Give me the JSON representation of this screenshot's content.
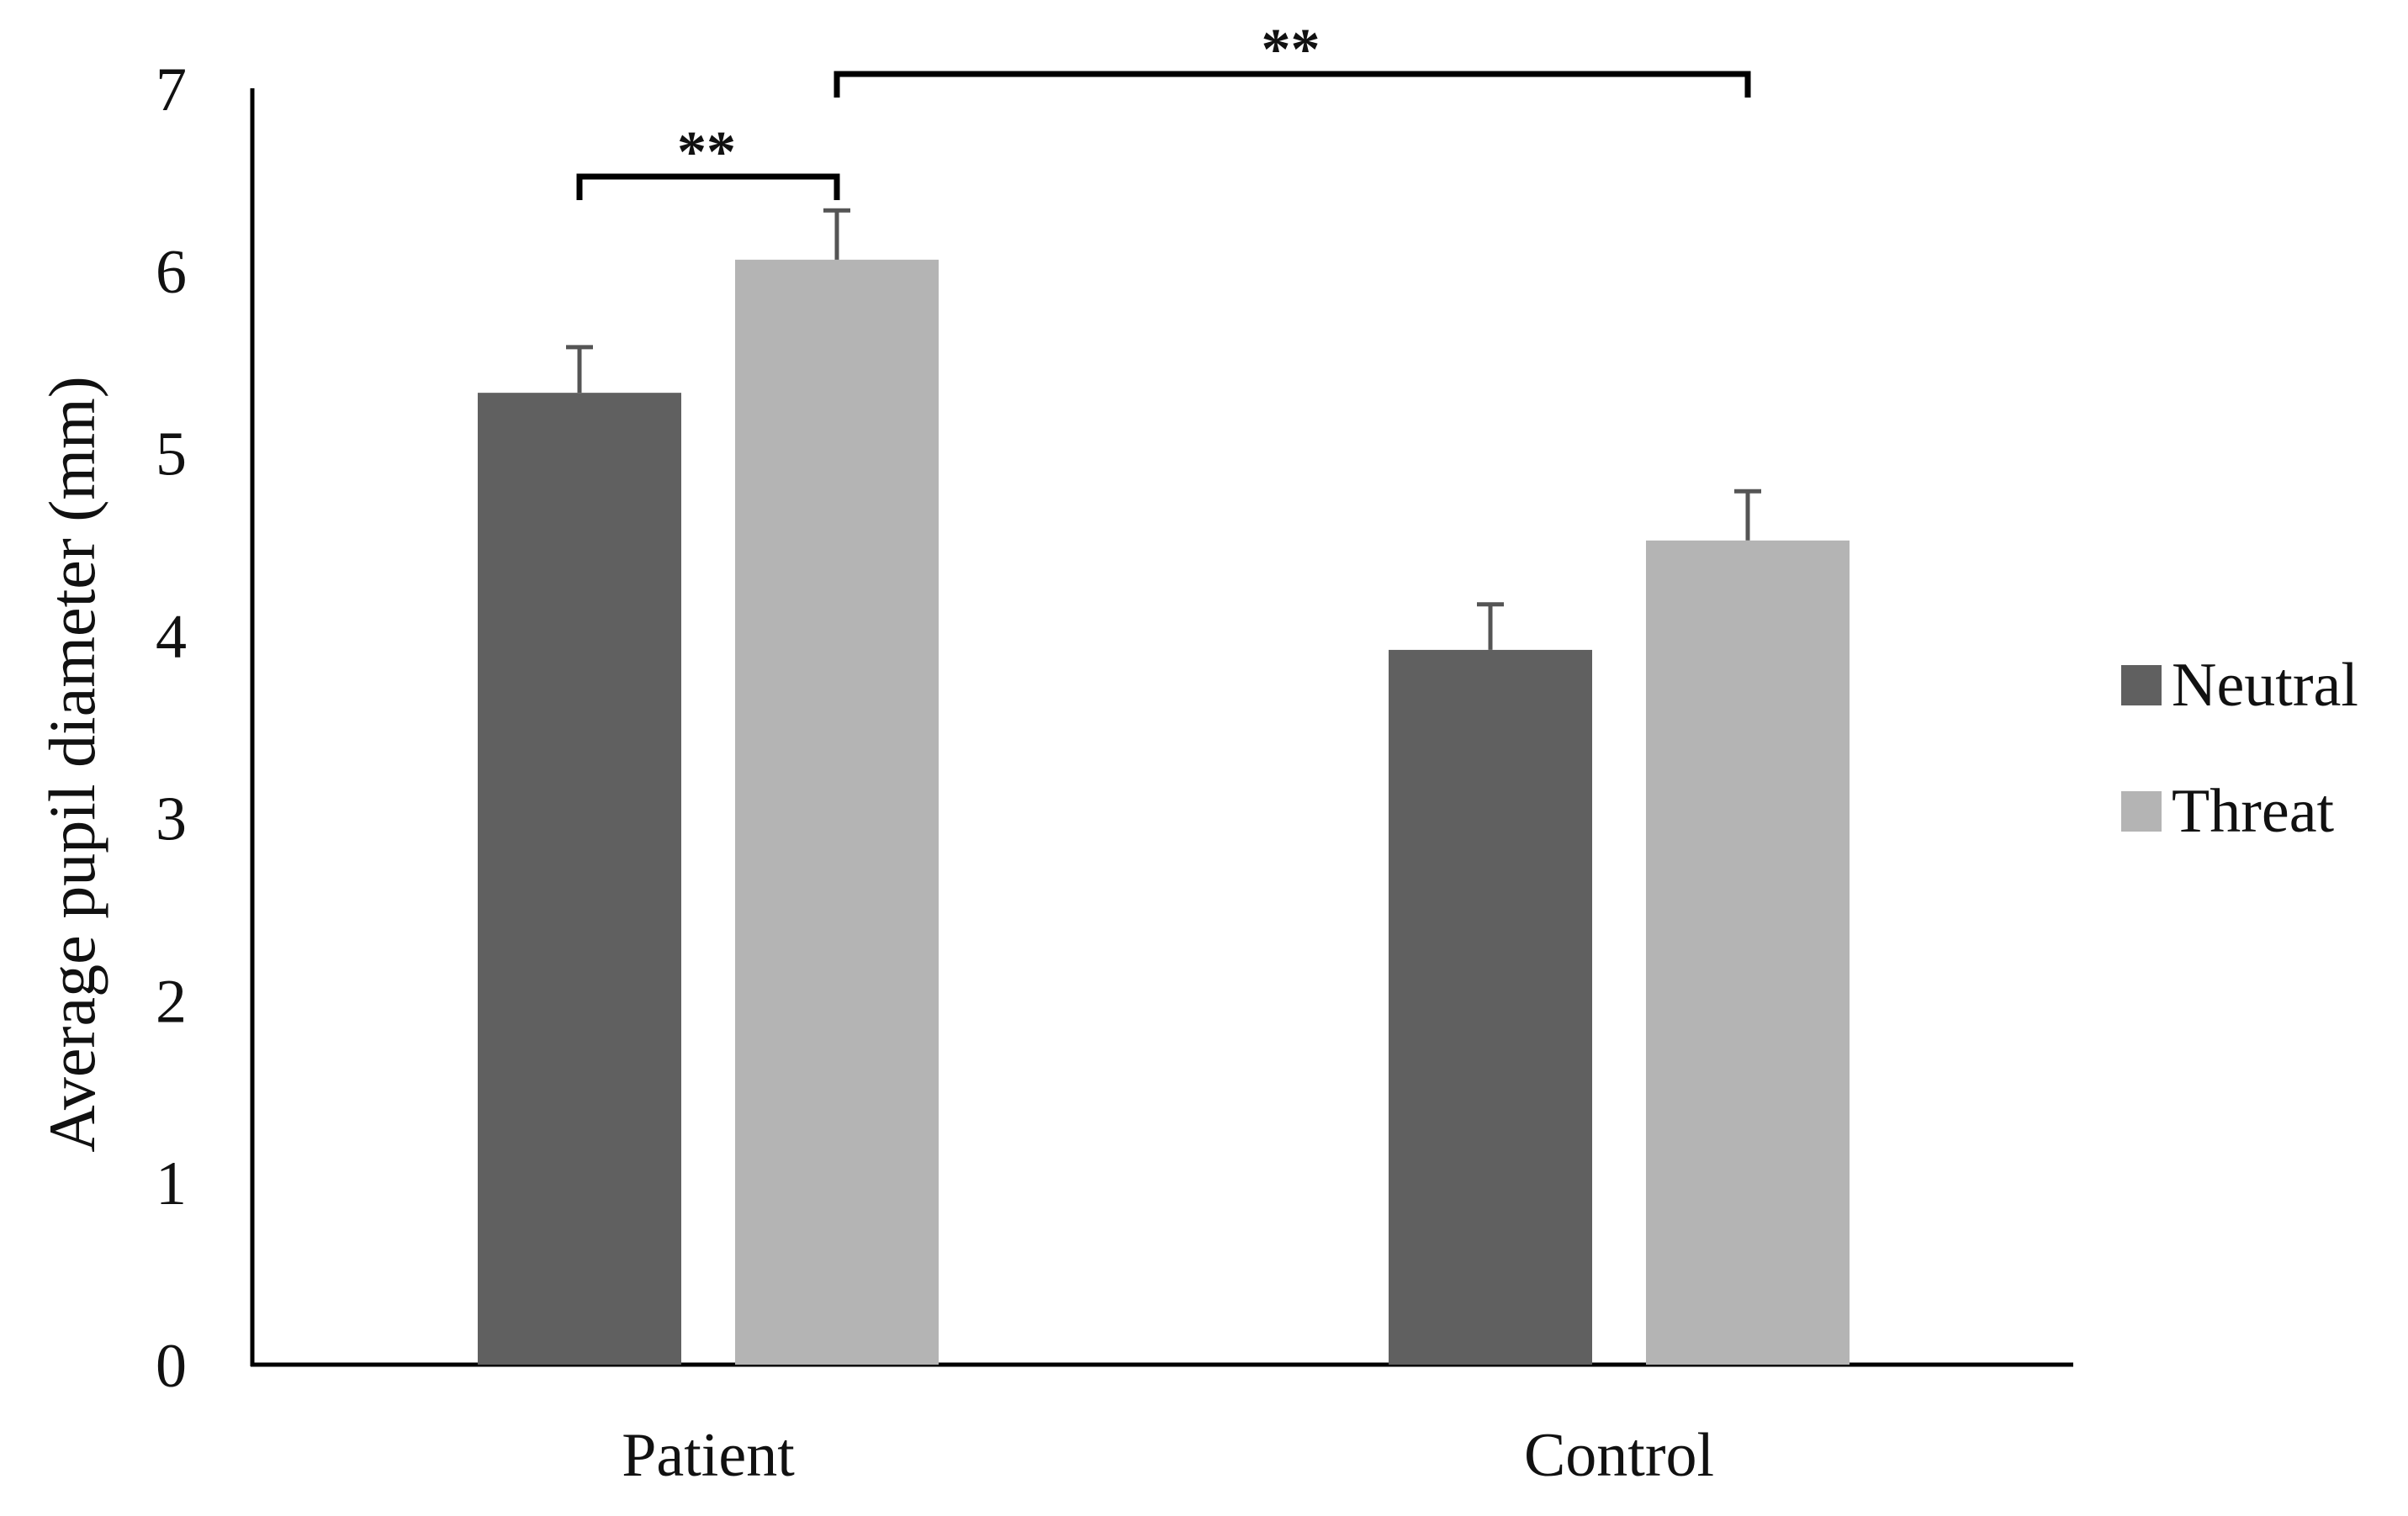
{
  "chart_data": {
    "type": "bar",
    "title": "",
    "xlabel": "",
    "ylabel": "Average pupil diameter (mm)",
    "ylim": [
      0,
      7
    ],
    "yticks": [
      0,
      1,
      2,
      3,
      4,
      5,
      6,
      7
    ],
    "categories": [
      "Patient",
      "Control"
    ],
    "series": [
      {
        "name": "Neutral",
        "color": "#606060",
        "values": [
          5.33,
          3.92
        ],
        "error": [
          0.25,
          0.25
        ]
      },
      {
        "name": "Threat",
        "color": "#b4b4b4",
        "values": [
          6.06,
          4.52
        ],
        "error": [
          0.27,
          0.27
        ]
      }
    ],
    "legend_position": "right",
    "grid": false,
    "significance": [
      {
        "label": "**",
        "from": {
          "category": "Patient",
          "series": "Neutral"
        },
        "to": {
          "category": "Patient",
          "series": "Threat"
        }
      },
      {
        "label": "**",
        "from": {
          "category": "Patient",
          "series": "Threat"
        },
        "to": {
          "category": "Control",
          "series": "Threat"
        }
      }
    ]
  }
}
